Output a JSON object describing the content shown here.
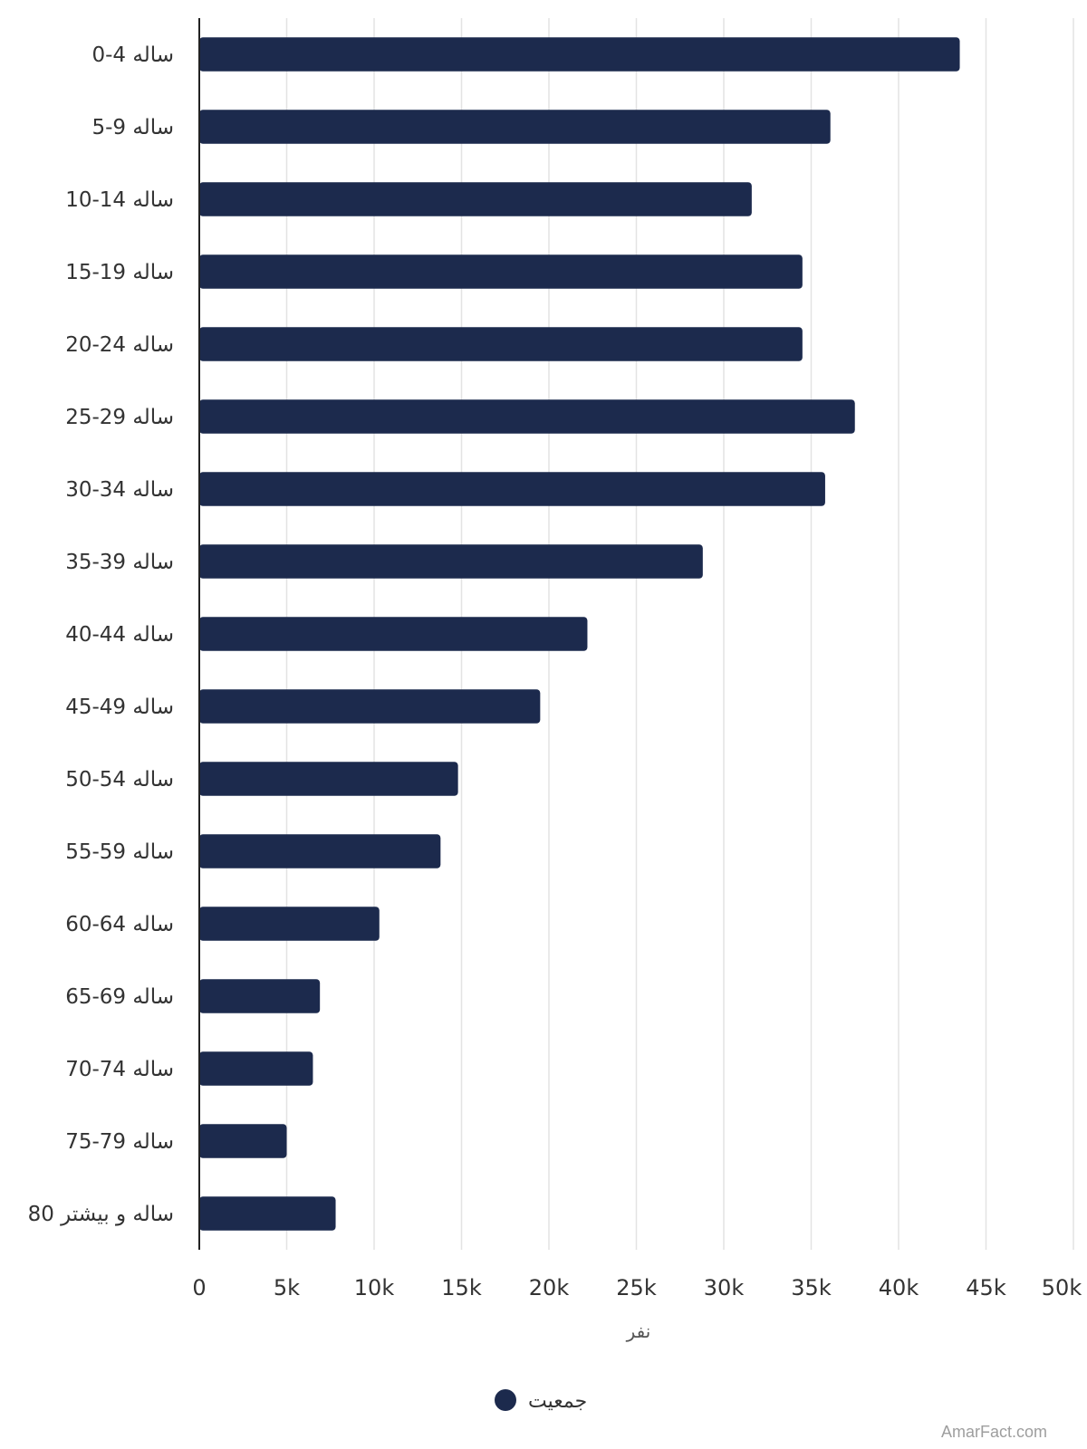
{
  "chart_data": {
    "type": "bar",
    "orientation": "horizontal",
    "categories": [
      "0-4 ساله",
      "5-9 ساله",
      "10-14 ساله",
      "15-19 ساله",
      "20-24 ساله",
      "25-29 ساله",
      "30-34 ساله",
      "35-39 ساله",
      "40-44 ساله",
      "45-49 ساله",
      "50-54 ساله",
      "55-59 ساله",
      "60-64 ساله",
      "65-69 ساله",
      "70-74 ساله",
      "75-79 ساله",
      "80 ساله و بیشتر"
    ],
    "series": [
      {
        "name": "جمعیت",
        "color": "#1c2a4d",
        "values": [
          43500,
          36100,
          31600,
          34500,
          34500,
          37500,
          35800,
          28800,
          22200,
          19500,
          14800,
          13800,
          10300,
          6900,
          6500,
          5000,
          7800
        ]
      }
    ],
    "xlabel": "نفر",
    "ylabel": "",
    "xlim": [
      0,
      50000
    ],
    "x_ticks": [
      0,
      5000,
      10000,
      15000,
      20000,
      25000,
      30000,
      35000,
      40000,
      45000,
      50000
    ],
    "x_tick_labels": [
      "0",
      "5k",
      "10k",
      "15k",
      "20k",
      "25k",
      "30k",
      "35k",
      "40k",
      "45k",
      "50k"
    ],
    "grid": true,
    "legend_position": "bottom"
  },
  "watermark": "AmarFact.com"
}
